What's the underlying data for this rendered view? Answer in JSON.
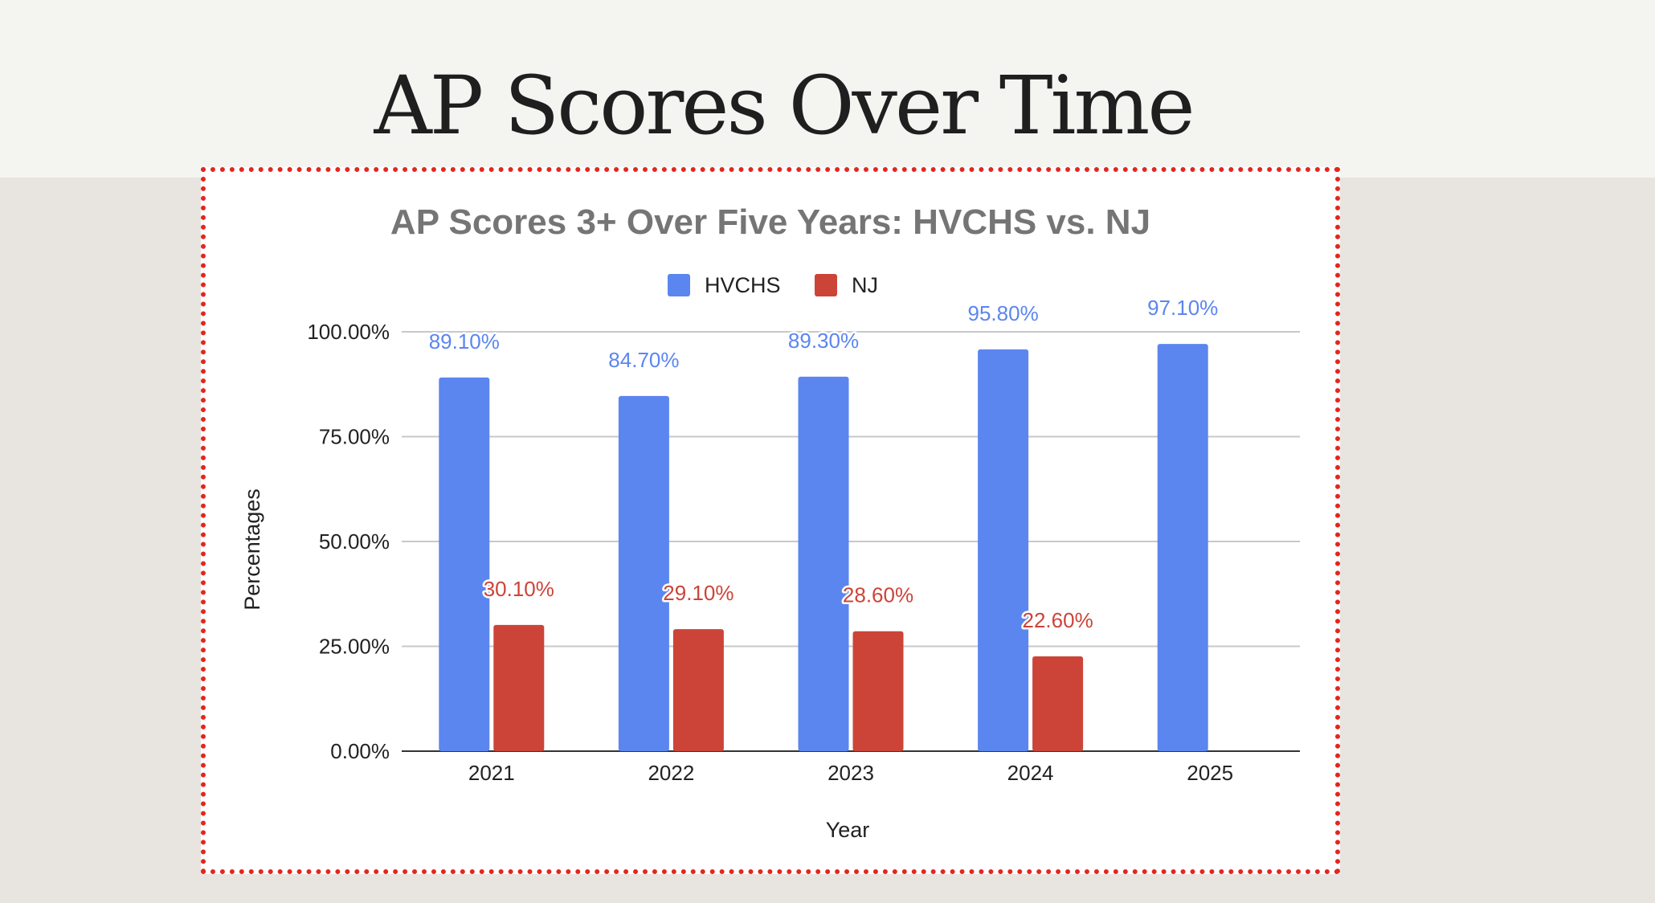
{
  "page": {
    "heading": "AP Scores Over Time"
  },
  "chart_data": {
    "type": "bar",
    "title": "AP Scores 3+ Over Five Years: HVCHS vs. NJ",
    "xlabel": "Year",
    "ylabel": "Percentages",
    "categories": [
      "2021",
      "2022",
      "2023",
      "2024",
      "2025"
    ],
    "series": [
      {
        "name": "HVCHS",
        "color": "#5b86ef",
        "values": [
          89.1,
          84.7,
          89.3,
          95.8,
          97.1
        ],
        "labels": [
          "89.10%",
          "84.70%",
          "89.30%",
          "95.80%",
          "97.10%"
        ]
      },
      {
        "name": "NJ",
        "color": "#cc4438",
        "values": [
          30.1,
          29.1,
          28.6,
          22.6,
          null
        ],
        "labels": [
          "30.10%",
          "29.10%",
          "28.60%",
          "22.60%",
          null
        ]
      }
    ],
    "ylim": [
      0,
      100
    ],
    "yticks": [
      0,
      25,
      50,
      75,
      100
    ],
    "ytick_labels": [
      "0.00%",
      "25.00%",
      "50.00%",
      "75.00%",
      "100.00%"
    ],
    "legend_position": "top",
    "grid": true
  }
}
